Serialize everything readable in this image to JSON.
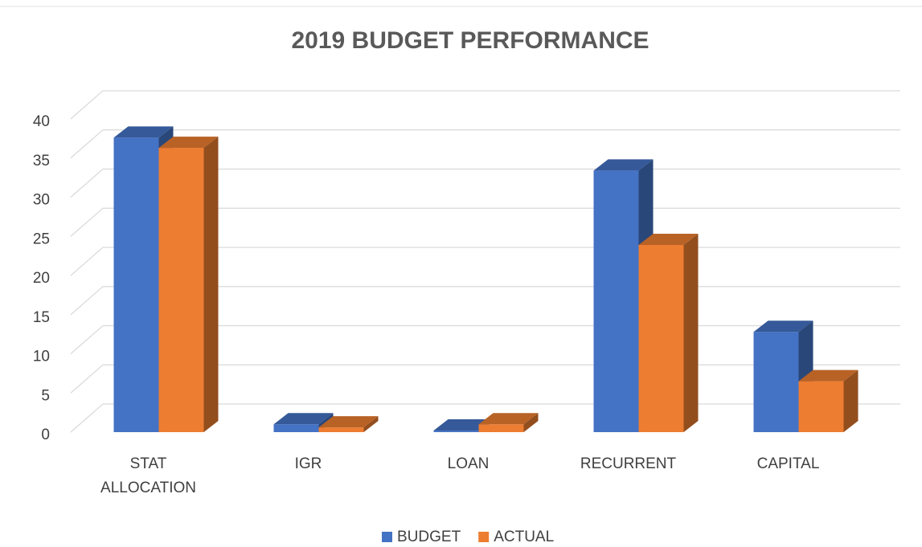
{
  "chart_data": {
    "type": "bar3d",
    "title": "2019 BUDGET PERFORMANCE",
    "categories": [
      "STAT ALLOCATION",
      "IGR",
      "LOAN",
      "RECURRENT",
      "CAPITAL"
    ],
    "series": [
      {
        "name": "BUDGET",
        "color": "#4472c4",
        "values": [
          37.6,
          1.0,
          0.2,
          33.4,
          12.8
        ]
      },
      {
        "name": "ACTUAL",
        "color": "#ed7d31",
        "values": [
          36.3,
          0.6,
          1.0,
          23.9,
          6.5
        ]
      }
    ],
    "ylim": [
      0,
      40
    ],
    "yticks": [
      0,
      5,
      10,
      15,
      20,
      25,
      30,
      35,
      40
    ],
    "grid": true,
    "legend": "bottom"
  }
}
